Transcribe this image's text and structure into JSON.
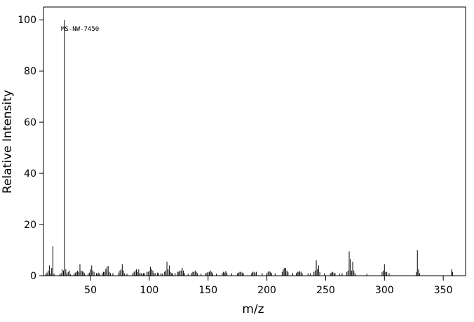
{
  "chart_data": {
    "type": "stem",
    "x_label": "m/z",
    "y_label": "Relative Intensity",
    "annotation": "MS-NW-7450",
    "color": "#000000",
    "x": [
      12,
      13,
      14,
      15,
      16,
      17,
      18,
      19,
      24,
      25,
      26,
      27,
      28,
      29,
      30,
      31,
      32,
      33,
      36,
      37,
      38,
      39,
      40,
      41,
      42,
      43,
      44,
      45,
      48,
      49,
      50,
      51,
      52,
      53,
      55,
      56,
      57,
      58,
      60,
      61,
      62,
      63,
      64,
      65,
      66,
      67,
      69,
      74,
      75,
      76,
      77,
      78,
      79,
      81,
      86,
      87,
      88,
      89,
      90,
      91,
      92,
      93,
      94,
      95,
      96,
      98,
      99,
      100,
      101,
      102,
      103,
      104,
      105,
      107,
      108,
      110,
      111,
      113,
      114,
      115,
      116,
      117,
      118,
      119,
      120,
      122,
      124,
      125,
      126,
      127,
      128,
      129,
      130,
      133,
      136,
      137,
      138,
      139,
      140,
      141,
      144,
      148,
      149,
      150,
      151,
      152,
      153,
      154,
      157,
      162,
      163,
      164,
      165,
      166,
      170,
      175,
      176,
      177,
      178,
      179,
      180,
      187,
      188,
      189,
      190,
      191,
      196,
      200,
      201,
      202,
      203,
      204,
      207,
      213,
      214,
      215,
      216,
      217,
      218,
      222,
      225,
      226,
      227,
      228,
      229,
      230,
      235,
      237,
      240,
      241,
      242,
      243,
      244,
      245,
      249,
      254,
      255,
      256,
      257,
      258,
      262,
      264,
      268,
      269,
      270,
      271,
      272,
      273,
      274,
      275,
      285,
      298,
      299,
      300,
      301,
      302,
      304,
      327,
      328,
      329,
      330,
      357,
      358
    ],
    "values": [
      0.8,
      1.2,
      2,
      4,
      1,
      3,
      11.5,
      0.8,
      0.6,
      1,
      2.5,
      2,
      100,
      2.5,
      1,
      1.5,
      2,
      0.5,
      0.8,
      1.2,
      1.5,
      2,
      1.5,
      4.5,
      2,
      1.8,
      1.5,
      1,
      0.8,
      1.2,
      2.5,
      4,
      2,
      1.5,
      1,
      0.8,
      1.2,
      0.8,
      1,
      1.5,
      1.5,
      2.5,
      3.5,
      3.8,
      1.5,
      1,
      1,
      1.2,
      2,
      2.5,
      4.5,
      2,
      1,
      0.8,
      1,
      1.5,
      2,
      2.5,
      1.5,
      2.5,
      1,
      1,
      0.8,
      1,
      1,
      1.5,
      1.5,
      2,
      3.5,
      2.5,
      2,
      1,
      1,
      1.2,
      1,
      1,
      0.8,
      1.5,
      2,
      5.5,
      2.5,
      4,
      1.5,
      1,
      1,
      1,
      1.5,
      1.5,
      2,
      2,
      3,
      2,
      1,
      0.8,
      1,
      1.5,
      1.5,
      2,
      1.5,
      1,
      0.8,
      1,
      1.2,
      1.5,
      1.5,
      2,
      1.5,
      1,
      0.8,
      1,
      1.5,
      1.2,
      1.8,
      1.2,
      1,
      1,
      1.2,
      1.5,
      1.5,
      1.2,
      1,
      1,
      1.5,
      1.5,
      1.2,
      1.5,
      1,
      1,
      1.5,
      1.8,
      1.5,
      1,
      1,
      1.5,
      2.5,
      3,
      3,
      2,
      1.5,
      1,
      1,
      1.5,
      1.5,
      1.8,
      1.5,
      1,
      1,
      1,
      1.5,
      2,
      6,
      2.5,
      4,
      1.5,
      1,
      1,
      1.2,
      1.5,
      1.2,
      1,
      0.8,
      1,
      1.5,
      2,
      9.5,
      6.5,
      2,
      5.5,
      2,
      1,
      0.8,
      1.5,
      2,
      4.5,
      1.5,
      1.5,
      1,
      1.5,
      10,
      2.5,
      1,
      2.5,
      1.5
    ],
    "xlim": [
      10,
      369
    ],
    "xticks": [
      50,
      100,
      150,
      200,
      250,
      300,
      350
    ],
    "ylim": [
      0,
      105
    ],
    "yticks": [
      0,
      20,
      40,
      60,
      80,
      100
    ]
  }
}
